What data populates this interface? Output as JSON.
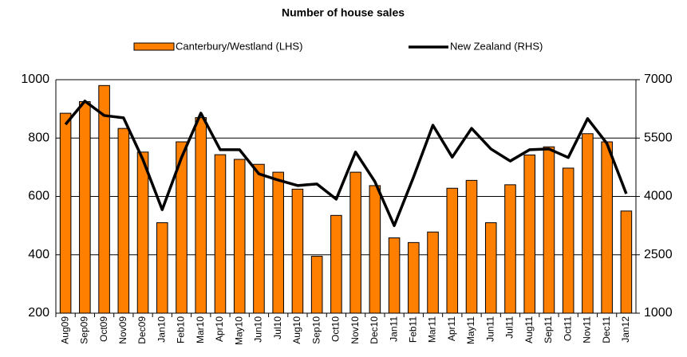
{
  "chart_data": {
    "type": "bar_line",
    "title": "Number of house sales",
    "categories": [
      "Aug09",
      "Sep09",
      "Oct09",
      "Nov09",
      "Dec09",
      "Jan10",
      "Feb10",
      "Mar10",
      "Apr10",
      "May10",
      "Jun10",
      "Jul10",
      "Aug10",
      "Sep10",
      "Oct10",
      "Nov10",
      "Dec10",
      "Jan11",
      "Feb11",
      "Mar11",
      "Apr11",
      "May11",
      "Jun11",
      "Jul11",
      "Aug11",
      "Sep11",
      "Oct11",
      "Nov11",
      "Dec11",
      "Jan12"
    ],
    "series": [
      {
        "name": "Canterbury/Westland (LHS)",
        "color": "#ff7f00",
        "values": [
          885,
          925,
          980,
          833,
          752,
          510,
          787,
          870,
          743,
          727,
          710,
          683,
          625,
          395,
          535,
          683,
          637,
          458,
          442,
          478,
          628,
          655,
          510,
          640,
          742,
          770,
          697,
          815,
          787,
          550
        ]
      },
      {
        "name": "New Zealand (RHS)",
        "color": "#000000",
        "axis": "y2",
        "values": [
          5850,
          6450,
          6080,
          6020,
          4950,
          3660,
          5000,
          6140,
          5200,
          5200,
          4580,
          4420,
          4280,
          4320,
          3930,
          5140,
          4380,
          3250,
          4500,
          5830,
          5010,
          5750,
          5220,
          4910,
          5200,
          5220,
          5000,
          6000,
          5360,
          4070
        ]
      }
    ],
    "ylim": [
      200,
      1000
    ],
    "yticks": [
      200,
      400,
      600,
      800,
      1000
    ],
    "y2lim": [
      1000,
      7000
    ],
    "y2ticks": [
      1000,
      2500,
      4000,
      5500,
      7000
    ],
    "grid": true,
    "legend": "top"
  }
}
